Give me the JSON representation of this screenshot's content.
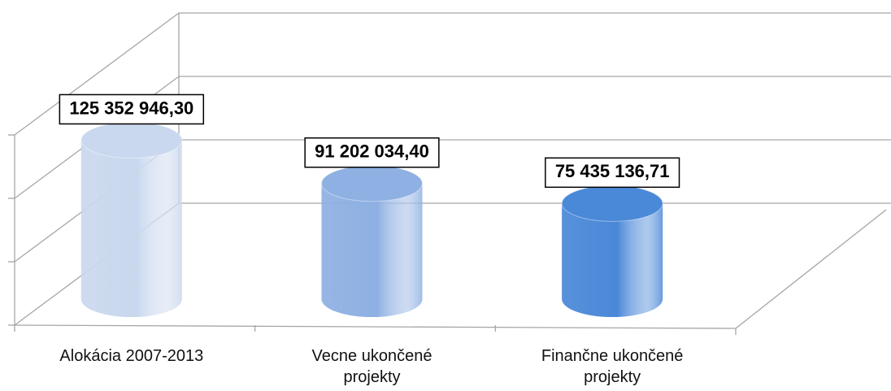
{
  "chart_data": {
    "type": "cylinder",
    "categories": [
      "Alokácia 2007-2013",
      "Vecne ukončené projekty",
      "Finančne ukončené projekty"
    ],
    "values": [
      125352946.3,
      91202034.4,
      75435136.71
    ],
    "value_labels": [
      "125 352 946,30",
      "91 202 034,40",
      "75 435 136,71"
    ],
    "colors": [
      "#c9d8ee",
      "#8eb0e2",
      "#4a88d8"
    ],
    "ylim": [
      0,
      150000000
    ],
    "yticks": [
      0,
      50000000,
      100000000,
      150000000
    ],
    "grid": true
  }
}
